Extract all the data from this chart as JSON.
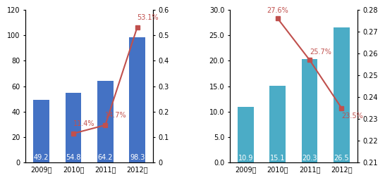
{
  "chart1": {
    "years": [
      "2009年",
      "2010年",
      "2011年",
      "2012年"
    ],
    "bar_values": [
      49.2,
      54.8,
      64.2,
      98.3
    ],
    "bar_color": "#4472C4",
    "line_values": [
      null,
      0.114,
      0.147,
      0.531
    ],
    "line_color": "#C0504D",
    "line_labels": [
      null,
      "11.4%",
      "14.7%",
      "53.1%"
    ],
    "line_label_offsets": [
      null,
      0.025,
      0.025,
      0.025
    ],
    "line_label_va": [
      null,
      "bottom",
      "bottom",
      "bottom"
    ],
    "line_label_ha": [
      null,
      "left",
      "left",
      "left"
    ],
    "ylim_left": [
      0,
      120
    ],
    "ylim_right": [
      0,
      0.6
    ],
    "yticks_left": [
      0,
      20,
      40,
      60,
      80,
      100,
      120
    ],
    "yticks_right": [
      0,
      0.1,
      0.2,
      0.3,
      0.4,
      0.5,
      0.6
    ]
  },
  "chart2": {
    "years": [
      "2009年",
      "2010年",
      "2011年",
      "2012年"
    ],
    "bar_values": [
      10.9,
      15.1,
      20.3,
      26.5
    ],
    "bar_color": "#4BACC6",
    "line_values": [
      null,
      0.276,
      0.257,
      0.235
    ],
    "line_color": "#C0504D",
    "line_labels": [
      null,
      "27.6%",
      "25.7%",
      "23.5%"
    ],
    "line_label_offsets": [
      null,
      0.002,
      0.002,
      -0.002
    ],
    "line_label_va": [
      null,
      "bottom",
      "bottom",
      "top"
    ],
    "line_label_ha": [
      null,
      "center",
      "left",
      "left"
    ],
    "ylim_left": [
      0.0,
      30.0
    ],
    "ylim_right": [
      0.21,
      0.28
    ],
    "yticks_left": [
      0.0,
      5.0,
      10.0,
      15.0,
      20.0,
      25.0,
      30.0
    ],
    "yticks_right": [
      0.21,
      0.22,
      0.23,
      0.24,
      0.25,
      0.26,
      0.27,
      0.28
    ]
  },
  "bar_label_fontsize": 7,
  "line_label_fontsize": 7,
  "tick_fontsize": 7,
  "marker": "s",
  "marker_size": 5
}
